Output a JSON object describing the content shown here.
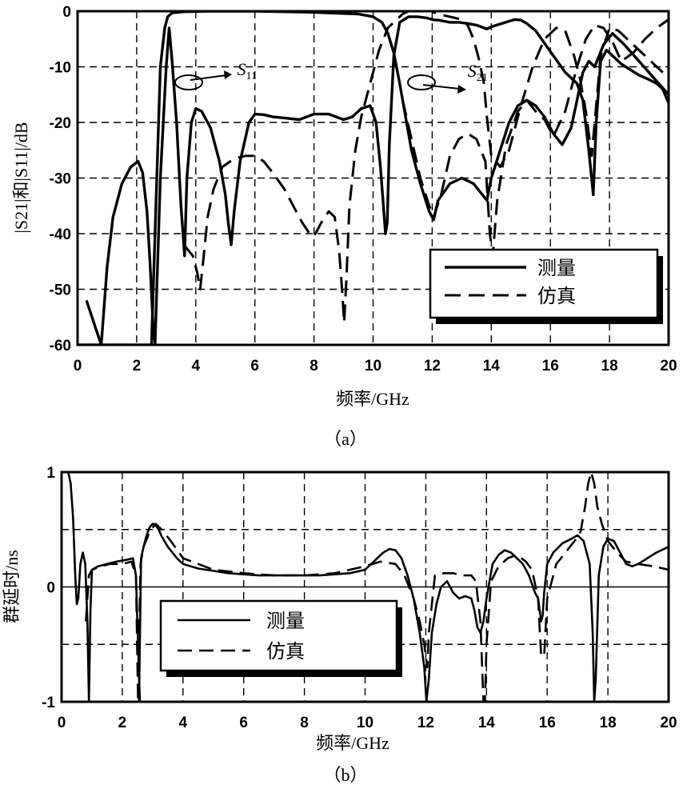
{
  "chart_data": [
    {
      "type": "line",
      "caption": "（a）",
      "xlabel": "频率/GHz",
      "ylabel": "|S21|和|S11|/dB",
      "xlim": [
        0,
        20
      ],
      "ylim": [
        -60,
        0
      ],
      "xticks": [
        "0",
        "2",
        "4",
        "6",
        "8",
        "10",
        "12",
        "14",
        "16",
        "18",
        "20"
      ],
      "yticks": [
        "0",
        "-10",
        "-20",
        "-30",
        "-40",
        "-50",
        "-60"
      ],
      "grid": true,
      "legend": {
        "position": "bottom-right",
        "entries": [
          "测量",
          "仿真"
        ]
      },
      "annotations": [
        {
          "label": "S",
          "sub": "11",
          "x": 5.4,
          "y": -11.5
        },
        {
          "label": "S",
          "sub": "21",
          "x": 13.2,
          "y": -11.8
        }
      ],
      "series": [
        {
          "name": "测量",
          "style": "solid",
          "x": [
            0.3,
            0.55,
            0.8,
            1.0,
            1.2,
            1.5,
            1.8,
            2.05,
            2.2,
            2.35,
            2.45,
            2.55,
            2.62
          ],
          "y": [
            -52,
            -56,
            -60,
            -46,
            -37,
            -31,
            -28,
            -27,
            -29,
            -36,
            -45,
            -56,
            -60
          ]
        },
        {
          "name": "测量",
          "style": "solid",
          "x": [
            2.62,
            2.8,
            3.0,
            3.1,
            3.2,
            3.35,
            3.5,
            3.62,
            3.7,
            3.85,
            4.0,
            4.2,
            4.5,
            4.8,
            5.0,
            5.1,
            5.2,
            5.3,
            5.5,
            5.8,
            6.0,
            6.3,
            6.6,
            7.0,
            7.5,
            8.0,
            8.5,
            9.0,
            9.3,
            9.6,
            9.9,
            10.1,
            10.25,
            10.35,
            10.42,
            10.48,
            10.55,
            10.7,
            10.9,
            11.2,
            11.5,
            11.8,
            12.0,
            12.1,
            12.2,
            12.4,
            12.6,
            12.9,
            13.2,
            13.5,
            13.75,
            13.85,
            14.0,
            14.3,
            14.6,
            14.8,
            15.0,
            15.2,
            15.5,
            15.7,
            15.9,
            16.1,
            16.3,
            16.5,
            16.7,
            16.9,
            17.1,
            17.3,
            17.45,
            17.55,
            17.7,
            17.9,
            18.1,
            18.4,
            18.7,
            19.0,
            19.3,
            19.6,
            19.8,
            20.0
          ],
          "y": [
            -60,
            -30,
            -10,
            -3,
            -9,
            -20,
            -35,
            -44,
            -30,
            -20,
            -17.5,
            -18,
            -21,
            -27,
            -33,
            -38,
            -42,
            -36,
            -27,
            -20,
            -18.5,
            -18.6,
            -19,
            -19.2,
            -19.5,
            -18.5,
            -18.5,
            -19.5,
            -19,
            -17.5,
            -17,
            -20,
            -28,
            -35,
            -40,
            -38,
            -24,
            -8,
            -2,
            -1,
            -1,
            -1.2,
            -1.5,
            -1.6,
            -1.6,
            -1.8,
            -2,
            -2,
            -2.2,
            -2.5,
            -3,
            -3.2,
            -2.8,
            -2.3,
            -1.8,
            -1.5,
            -1.6,
            -2.2,
            -3.5,
            -5,
            -6.5,
            -8,
            -9.5,
            -11,
            -12,
            -13,
            -16,
            -25,
            -33,
            -20,
            -9,
            -7,
            -8,
            -9.5,
            -10.5,
            -11.5,
            -12.2,
            -13,
            -14,
            -16.5
          ]
        },
        {
          "name": "测量",
          "style": "solid",
          "x": [
            0.0,
            0.5,
            1.0,
            1.5,
            2.0,
            2.5,
            2.8,
            2.95,
            3.05,
            3.2,
            3.6,
            4.5,
            6,
            8,
            9.5,
            10.0,
            10.3,
            10.5,
            10.7,
            10.9,
            11.1,
            11.3,
            11.6,
            11.9,
            12.05,
            12.2,
            12.6,
            13.0,
            13.4,
            13.7,
            13.85,
            14.0,
            14.3,
            14.6,
            14.9,
            15.2,
            15.5,
            15.8,
            16.1,
            16.4,
            16.7,
            16.9,
            17.1,
            17.3,
            17.5,
            17.8,
            18.1,
            18.5,
            19.0,
            19.5,
            20.0
          ],
          "y": [
            -60,
            -60,
            -60,
            -60,
            -60,
            -60,
            -10,
            -3,
            -1,
            -0.3,
            -0.1,
            0,
            0,
            -0.2,
            -0.5,
            -1,
            -2,
            -4,
            -7.5,
            -13,
            -19,
            -25,
            -31,
            -36,
            -37.5,
            -34,
            -31,
            -30,
            -31,
            -33,
            -34,
            -30,
            -25,
            -20,
            -17,
            -16,
            -17,
            -19,
            -22,
            -24,
            -21,
            -16,
            -11,
            -9,
            -10,
            -6,
            -4,
            -6,
            -9,
            -12,
            -15
          ]
        },
        {
          "name": "仿真",
          "style": "dashed",
          "x": [
            3.6,
            3.9,
            4.05,
            4.15,
            4.25,
            4.4,
            4.6,
            4.9,
            5.3,
            5.7,
            6.0,
            6.3,
            6.6,
            7.0,
            7.3,
            7.6,
            7.85,
            8.0,
            8.3,
            8.5,
            8.7,
            8.85,
            8.95,
            9.02,
            9.1,
            9.2,
            9.4,
            9.6,
            9.8,
            10.0,
            10.2,
            10.5,
            10.8,
            11.0,
            11.2,
            11.5,
            11.8,
            12.0,
            12.05,
            12.2,
            12.6,
            13.0,
            13.2,
            13.4,
            13.6,
            13.75,
            13.85,
            14.0,
            14.3,
            14.6,
            15.0,
            15.4,
            15.8,
            16.2,
            16.5,
            16.8,
            17.0,
            17.2,
            17.4,
            17.7,
            18.0,
            18.3,
            18.6,
            19.0,
            19.5,
            20.0
          ],
          "y": [
            -42,
            -44,
            -47,
            -50,
            -45,
            -37,
            -32,
            -28,
            -26.5,
            -26,
            -26,
            -27,
            -29,
            -32,
            -35,
            -38,
            -40,
            -40.5,
            -37.5,
            -36,
            -37,
            -43,
            -50,
            -56,
            -48,
            -35,
            -25,
            -19,
            -15,
            -11,
            -7,
            -3,
            -1.5,
            -0.5,
            0,
            0,
            0,
            0,
            -0.2,
            -0.5,
            -1,
            -1.5,
            -2.5,
            -5,
            -9,
            -13,
            -19,
            -26,
            -28,
            -25,
            -17,
            -10,
            -5,
            -3,
            -3.5,
            -8,
            -12,
            -18,
            -26,
            -8,
            -3,
            -3.5,
            -5,
            -7,
            -9.5,
            -12
          ]
        },
        {
          "name": "仿真",
          "style": "dashed",
          "x": [
            11.0,
            11.3,
            11.6,
            11.9,
            12.05,
            12.3,
            12.6,
            12.9,
            13.2,
            13.5,
            13.8,
            13.95,
            14.05,
            14.2,
            14.5,
            14.9,
            15.2,
            15.5,
            15.8,
            16.1,
            16.5,
            16.9,
            17.2,
            17.5,
            17.8,
            18.1,
            18.4,
            18.8,
            19.2,
            19.6,
            20.0
          ],
          "y": [
            -16,
            -23,
            -30,
            -35,
            -37,
            -33,
            -26,
            -23,
            -22,
            -23,
            -27,
            -40,
            -44,
            -34,
            -24,
            -18,
            -16,
            -18,
            -19.5,
            -22.5,
            -18,
            -10,
            -5,
            -2.5,
            -3,
            -5.5,
            -9,
            -7.5,
            -5,
            -3,
            -1.5
          ]
        }
      ]
    },
    {
      "type": "line",
      "caption": "（b）",
      "xlabel": "频率/GHz",
      "ylabel": "群延时/ns",
      "xlim": [
        0,
        20
      ],
      "ylim": [
        -1,
        1
      ],
      "xticks": [
        "0",
        "2",
        "4",
        "6",
        "8",
        "10",
        "12",
        "14",
        "16",
        "18",
        "20"
      ],
      "yticks": [
        "1",
        "0",
        "-1"
      ],
      "grid": true,
      "legend": {
        "position": "left",
        "entries": [
          "测量",
          "仿真"
        ]
      },
      "series": [
        {
          "name": "测量",
          "style": "solid",
          "x": [
            0.22,
            0.3,
            0.38,
            0.45,
            0.5,
            0.55,
            0.62,
            0.7,
            0.78,
            0.85,
            0.9,
            0.95,
            1.0,
            1.2,
            1.5,
            1.8,
            2.0,
            2.2,
            2.35,
            2.45,
            2.52,
            2.58
          ],
          "y": [
            1.0,
            0.9,
            0.6,
            0.1,
            -0.15,
            -0.1,
            0.2,
            0.3,
            0.2,
            -0.3,
            -1.0,
            -0.2,
            0.15,
            0.18,
            0.2,
            0.22,
            0.23,
            0.24,
            0.25,
            0.1,
            -0.5,
            -1.0
          ]
        },
        {
          "name": "测量",
          "style": "solid",
          "x": [
            2.55,
            2.62,
            2.7,
            2.8,
            2.9,
            3.0,
            3.1,
            3.2,
            3.3,
            3.5,
            3.8,
            4.0,
            4.5,
            5.0,
            5.5,
            6.0,
            6.5,
            7.0,
            7.5,
            8.0,
            8.5,
            9.0,
            9.5,
            10.0,
            10.2,
            10.4,
            10.6,
            10.8,
            11.0,
            11.2,
            11.4,
            11.6,
            11.8,
            11.95,
            12.02,
            12.1,
            12.2,
            12.35,
            12.5,
            12.7,
            12.9,
            13.1,
            13.3,
            13.5,
            13.6,
            13.7,
            13.8,
            13.9,
            14.0,
            14.1,
            14.2,
            14.4,
            14.6,
            14.8,
            15.0,
            15.2,
            15.4,
            15.6,
            15.7,
            15.8,
            15.85,
            15.9,
            16.0,
            16.2,
            16.5,
            16.8,
            17.0,
            17.2,
            17.4,
            17.5,
            17.55,
            17.6,
            17.7,
            17.85,
            18.0,
            18.2,
            18.4,
            18.6,
            18.8,
            19.0,
            19.3,
            19.6,
            20.0
          ],
          "y": [
            -1.0,
            0.25,
            0.35,
            0.45,
            0.52,
            0.55,
            0.54,
            0.5,
            0.44,
            0.35,
            0.25,
            0.2,
            0.16,
            0.14,
            0.12,
            0.11,
            0.1,
            0.1,
            0.1,
            0.1,
            0.1,
            0.11,
            0.12,
            0.15,
            0.2,
            0.25,
            0.3,
            0.33,
            0.32,
            0.25,
            0.1,
            -0.1,
            -0.4,
            -0.7,
            -1.0,
            -0.8,
            -0.4,
            -0.15,
            0.0,
            0.05,
            -0.05,
            -0.1,
            -0.08,
            -0.1,
            -0.2,
            -0.35,
            -0.4,
            -0.3,
            -0.1,
            0.05,
            0.2,
            0.28,
            0.32,
            0.3,
            0.25,
            0.2,
            0.1,
            -0.05,
            -0.1,
            -0.3,
            -0.25,
            -0.05,
            0.2,
            0.3,
            0.38,
            0.42,
            0.45,
            0.4,
            0.2,
            -0.4,
            -1.0,
            -0.8,
            0.1,
            0.35,
            0.42,
            0.4,
            0.3,
            0.2,
            0.18,
            0.2,
            0.25,
            0.3,
            0.35
          ]
        },
        {
          "name": "仿真",
          "style": "dashed",
          "x": [
            0.8,
            0.9,
            1.0,
            1.3,
            1.6,
            2.0,
            2.3,
            2.45,
            2.52,
            2.6,
            2.7,
            2.9,
            3.1,
            3.3,
            3.6,
            4.0,
            5.0,
            6.0,
            7.0,
            8.0,
            9.0,
            10.0,
            10.5,
            11.0,
            11.3,
            11.6,
            11.8,
            11.95,
            12.05,
            12.1,
            12.3,
            12.6,
            12.9,
            13.2,
            13.5,
            13.65,
            13.8,
            13.9,
            13.95,
            14.0,
            14.15,
            14.4,
            14.7,
            15.0,
            15.3,
            15.5,
            15.7,
            15.8,
            15.9,
            16.0,
            16.3,
            16.6,
            16.9,
            17.1,
            17.25,
            17.35,
            17.45,
            17.55,
            17.65,
            17.8,
            18.0,
            18.3,
            18.6,
            19.0,
            19.5,
            20.0
          ],
          "y": [
            -0.3,
            0.1,
            0.15,
            0.18,
            0.2,
            0.2,
            0.22,
            0.1,
            -1.0,
            0.2,
            0.35,
            0.48,
            0.55,
            0.5,
            0.4,
            0.25,
            0.15,
            0.12,
            0.1,
            0.1,
            0.12,
            0.18,
            0.22,
            0.2,
            0.1,
            -0.1,
            -0.3,
            -0.5,
            -0.7,
            -0.4,
            0.1,
            0.12,
            0.12,
            0.1,
            0.1,
            0.05,
            -0.3,
            -1.0,
            -1.0,
            -0.5,
            0.05,
            0.18,
            0.25,
            0.28,
            0.22,
            0.15,
            -0.1,
            -0.6,
            -0.6,
            -0.1,
            0.2,
            0.3,
            0.4,
            0.48,
            0.7,
            0.9,
            1.0,
            0.9,
            0.7,
            0.55,
            0.4,
            0.3,
            0.22,
            0.2,
            0.18,
            0.15
          ]
        }
      ]
    }
  ]
}
